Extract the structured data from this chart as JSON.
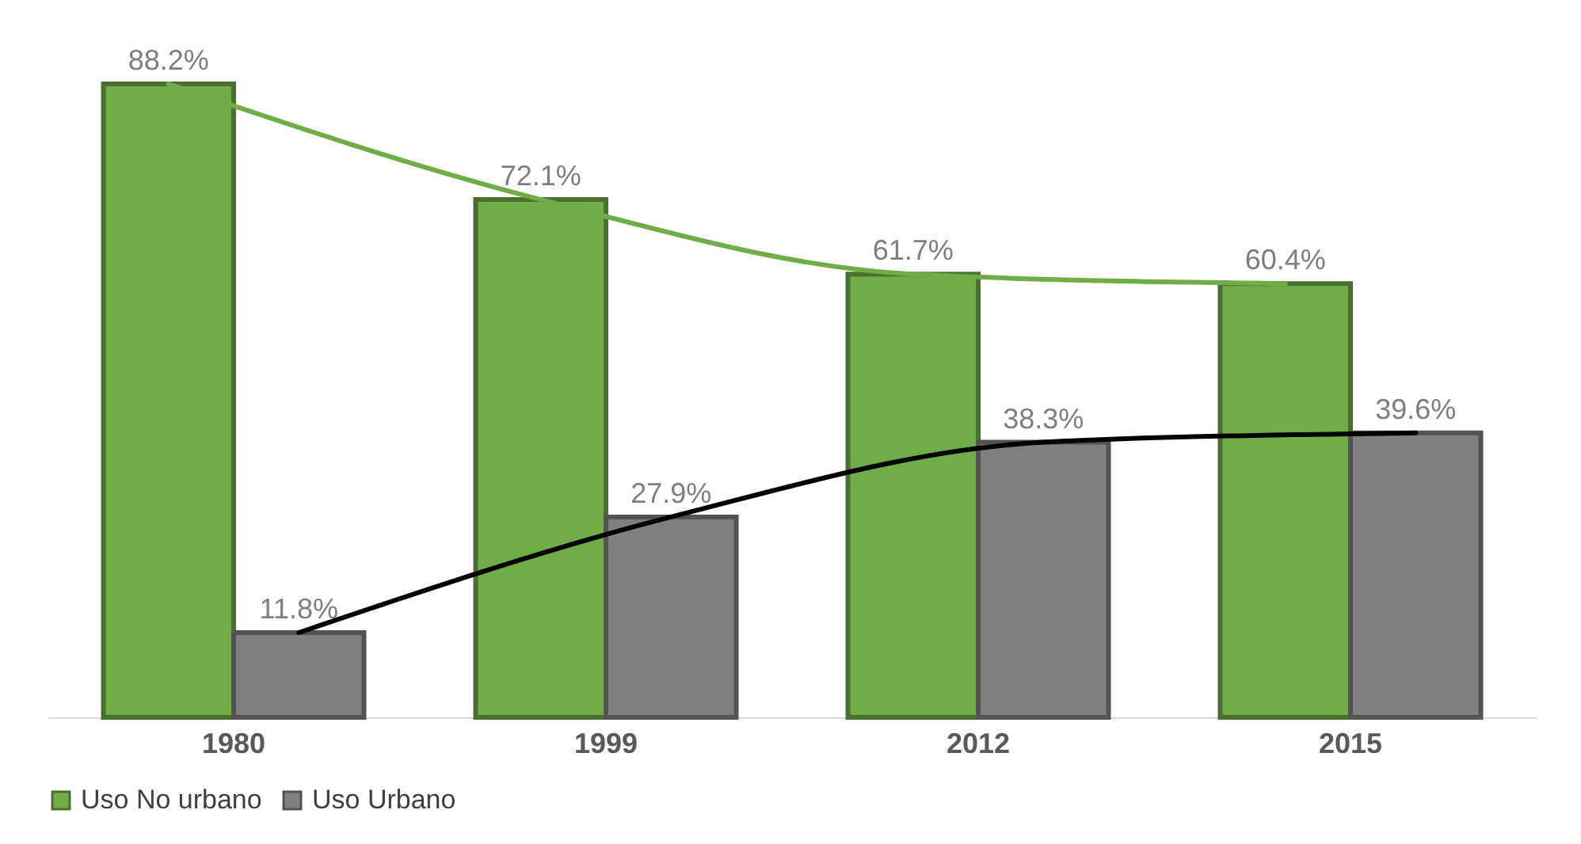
{
  "chart_data": {
    "type": "bar",
    "categories": [
      "1980",
      "1999",
      "2012",
      "2015"
    ],
    "series": [
      {
        "name": "Uso No urbano",
        "color": "#70ad47",
        "values": [
          88.2,
          72.1,
          61.7,
          60.4
        ],
        "value_labels": [
          "88.2%",
          "72.1%",
          "61.7%",
          "60.4%"
        ]
      },
      {
        "name": "Uso Urbano",
        "color": "#808080",
        "values": [
          11.8,
          27.9,
          38.3,
          39.6
        ],
        "value_labels": [
          "11.8%",
          "27.9%",
          "38.3%",
          "39.6%"
        ]
      },
      {
        "type": "line",
        "color": "#70ad47",
        "values": [
          88.2,
          72.1,
          61.7,
          60.4
        ]
      },
      {
        "type": "line",
        "color": "#000000",
        "values": [
          11.8,
          27.9,
          38.3,
          39.6
        ]
      }
    ],
    "tick_labels": "x",
    "legend": "bottom"
  }
}
